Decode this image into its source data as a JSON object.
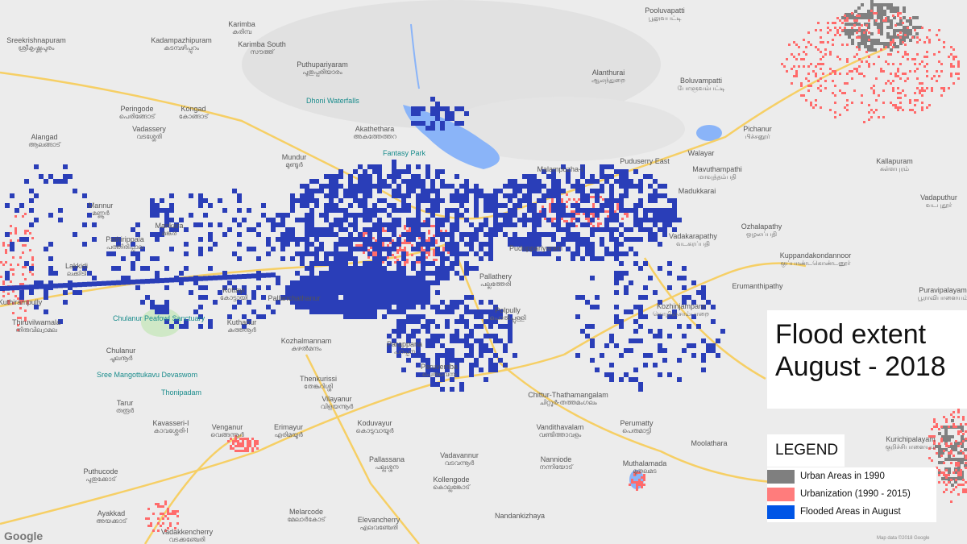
{
  "title": {
    "line1": "Flood extent",
    "line2": "August - 2018"
  },
  "legend": {
    "title": "LEGEND",
    "items": [
      {
        "label": "Urban Areas in 1990",
        "color": "#7f7f7f"
      },
      {
        "label": "Urbanization (1990   -   2015)",
        "color": "#ff7c7c"
      },
      {
        "label": "Flooded Areas in August",
        "color": "#0055e6"
      }
    ]
  },
  "colors": {
    "flood": "#2a3eb8",
    "urban_1990": "#808080",
    "urbanization": "#ff6b6b",
    "road": "#f6cf65",
    "water": "#8ab4f8",
    "base": "#ececec"
  },
  "map": {
    "attribution": "Map data ©2018 Google",
    "logo": "Google",
    "places": [
      {
        "name": "Pooluvapatti",
        "local": "பூலுவபட்டி"
      },
      {
        "name": "Sreekrishnapuram",
        "local": "ശ്രീകൃഷ്ണപുരം"
      },
      {
        "name": "Kadampazhipuram",
        "local": "കടമ്പഴിപ്പുറം"
      },
      {
        "name": "Karimba",
        "local": "കരിമ്പ"
      },
      {
        "name": "Karimba South",
        "local": "സൗത്ത്"
      },
      {
        "name": "Alanthurai",
        "local": "ஆலந்துறை"
      },
      {
        "name": "Puthupariyaram",
        "local": "പുതുപ്പരിയാരം"
      },
      {
        "name": "Boluvampatti",
        "local": "போளுவம்பட்டி"
      },
      {
        "name": "Peringode",
        "local": "പെരിങ്ങോട്"
      },
      {
        "name": "Kongad",
        "local": "കോങ്ങാട്"
      },
      {
        "name": "Akathethara",
        "local": "അകത്തേത്തറ"
      },
      {
        "name": "Alangad",
        "local": "ആലങ്ങാട്"
      },
      {
        "name": "Vadassery",
        "local": "വടശ്ശേരി"
      },
      {
        "name": "Puduserry East",
        "local": ""
      },
      {
        "name": "Walayar",
        "local": ""
      },
      {
        "name": "Pichanur",
        "local": "பிச்சனூர்"
      },
      {
        "name": "Madukkarai",
        "local": ""
      },
      {
        "name": "Malampuzha-I",
        "local": ""
      },
      {
        "name": "Mundur",
        "local": "മുണ്ടൂർ"
      },
      {
        "name": "Mavuthampathi",
        "local": "மாவுத்தம்பதி"
      },
      {
        "name": "Mannur",
        "local": "മണ്ണൂർ"
      },
      {
        "name": "Mankara",
        "local": "മങ്കര"
      },
      {
        "name": "Ozhalapathy",
        "local": "ஒழலப்பதி"
      },
      {
        "name": "Vadakarapathy",
        "local": "வடகரப்பதி"
      },
      {
        "name": "Pathirippala",
        "local": "പത്തിരിപ്പാല"
      },
      {
        "name": "Lakkidi",
        "local": "ലക്കിടി"
      },
      {
        "name": "Pallathery",
        "local": "പല്ലത്തേരി"
      },
      {
        "name": "Kottayi",
        "local": "കോട്ടായി"
      },
      {
        "name": "Erumanthipathy",
        "local": ""
      },
      {
        "name": "Chulanur",
        "local": "ചൂലനൂർ"
      },
      {
        "name": "Kuthanur",
        "local": "കുത്തനൂർ"
      },
      {
        "name": "Pallanchathanur",
        "local": ""
      },
      {
        "name": "Kozhalmannam",
        "local": "കുഴൽമന്ദം"
      },
      {
        "name": "Parappana",
        "local": "പറപ്പന"
      },
      {
        "name": "Puduppariyaram",
        "local": ""
      },
      {
        "name": "Polpully",
        "local": "പൊൽപ്പുള്ളി"
      },
      {
        "name": "Kozhinjampara",
        "local": "கொழிஞ்சாம்பாறை"
      },
      {
        "name": "Thenkurissi",
        "local": "തേങ്കുറിശ്ശി"
      },
      {
        "name": "Peruvemba",
        "local": "പെരുവെമ്പ"
      },
      {
        "name": "Vilayanur",
        "local": "വിളയന്നൂർ"
      },
      {
        "name": "Chittur-Thathamangalam",
        "local": "ചിറ്റൂർ-തത്തമംഗലം"
      },
      {
        "name": "Kavasseri-I",
        "local": "കാവശ്ശേരി-I"
      },
      {
        "name": "Venganur",
        "local": "വെങ്ങന്നൂർ"
      },
      {
        "name": "Erimayur",
        "local": "എരിമയൂർ"
      },
      {
        "name": "Koduvayur",
        "local": "കൊടുവായൂർ"
      },
      {
        "name": "Vandithavalam",
        "local": "വണ്ടിത്താവളം"
      },
      {
        "name": "Perumatty",
        "local": "പെരുമാട്ടി"
      },
      {
        "name": "Moolathara",
        "local": ""
      },
      {
        "name": "Pallassana",
        "local": "പല്ലശ്ശന"
      },
      {
        "name": "Vadavannur",
        "local": "വടവന്നൂർ"
      },
      {
        "name": "Nanniode",
        "local": "നന്നിയോട്"
      },
      {
        "name": "Muthalamada",
        "local": "മുതലമട"
      },
      {
        "name": "Kollengode",
        "local": "കൊല്ലങ്കോട്"
      },
      {
        "name": "Melarcode",
        "local": "മേലാർകോട്"
      },
      {
        "name": "Elevancherry",
        "local": "എലവഞ്ചേരി"
      },
      {
        "name": "Nandankizhaya",
        "local": ""
      },
      {
        "name": "Vadakkencherry",
        "local": "വടക്കഞ്ചേരി"
      },
      {
        "name": "Ayakkad",
        "local": "അയക്കാട്"
      },
      {
        "name": "Puthucode",
        "local": "പുതുക്കോട്"
      },
      {
        "name": "Tarur",
        "local": "തരൂർ"
      },
      {
        "name": "Kuthirampully",
        "local": ""
      },
      {
        "name": "Thiruvilwamala",
        "local": "തിരുവില്വാമല"
      },
      {
        "name": "Kuppandakondannoor",
        "local": "குப்பாண்டகொண்டனூர்"
      },
      {
        "name": "Kallapuram",
        "local": "கள்ளபுரம்"
      },
      {
        "name": "Vadaputhur",
        "local": "வடபுதூர்"
      },
      {
        "name": "Puravipalayam",
        "local": "பூராவிபாளையம்"
      },
      {
        "name": "Kurichipalayam",
        "local": "குறிச்சிபாளையம்"
      }
    ],
    "pois": [
      "Dhoni Waterfalls",
      "Fantasy Park",
      "Chulanur Peafowl Sanctuary",
      "Sree Mangottukavu Devaswom",
      "Thonipadam"
    ]
  }
}
